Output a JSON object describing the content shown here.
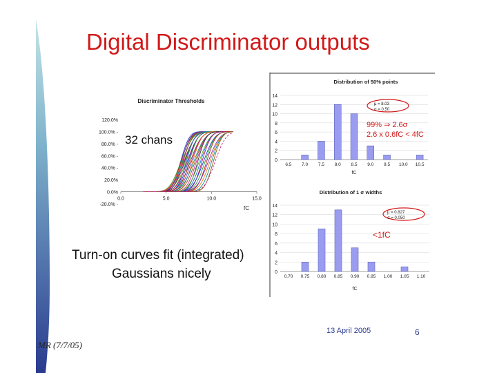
{
  "slide": {
    "title": "Digital Discriminator outputs",
    "caption_line1": "Turn-on curves fit (integrated)",
    "caption_line2": "Gaussians nicely",
    "date": "13 April 2005",
    "page": "6",
    "author_tag": "MR (7/7/05)",
    "colors": {
      "title": "#d11919",
      "sidebar_top": "#b8dde0",
      "sidebar_bottom": "#2a3b8f",
      "bars": "#9a9cf0",
      "annotation": "#d11919"
    }
  },
  "chart_data": [
    {
      "type": "line",
      "title": "Discriminator Thresholds",
      "annotation": "32 chans",
      "x_ticks": [
        "0.0",
        "5.0",
        "10.0",
        "15.0"
      ],
      "x_tick_values": [
        0,
        5,
        10,
        15
      ],
      "xlabel": "fC",
      "y_ticks": [
        "120.0%",
        "100.0% -",
        "80.0% -",
        "60.0% -",
        "40.0% -",
        "20.0%",
        "0.0%",
        "-20.0% -"
      ],
      "y_tick_values": [
        120,
        100,
        80,
        60,
        40,
        20,
        0,
        -20
      ],
      "xlim": [
        0,
        15
      ],
      "ylim": [
        -20,
        120
      ],
      "curve_model": "integrated gaussian",
      "n_channels": 32,
      "mu_range_fC": [
        6.6,
        10.4
      ],
      "sigma_range_fC": [
        0.75,
        1.0
      ],
      "plateau_percent": 100
    },
    {
      "type": "bar",
      "title": "Distribution of 50% points",
      "xlabel": "fC",
      "categories": [
        "6.5",
        "7.0",
        "7.5",
        "8.0",
        "8.5",
        "9.0",
        "9.5",
        "10.0",
        "10.5"
      ],
      "values": [
        0,
        1,
        4,
        12,
        10,
        3,
        1,
        0,
        1
      ],
      "y_ticks": [
        "14",
        "12",
        "10",
        "8",
        "6",
        "4",
        "2",
        "0"
      ],
      "ylim": [
        0,
        14
      ],
      "stats": [
        "μ = 8.03",
        "σ = 0.50"
      ],
      "annotations": [
        "99% ⇒ 2.6σ",
        "2.6 x 0.6fC < 4fC"
      ]
    },
    {
      "type": "bar",
      "title": "Distribution of 1 σ widths",
      "xlabel": "fC",
      "categories": [
        "0.70",
        "0.75",
        "0.80",
        "0.85",
        "0.90",
        "0.95",
        "1.00",
        "1.05",
        "1.10"
      ],
      "values": [
        0,
        2,
        9,
        13,
        5,
        2,
        0,
        1,
        0
      ],
      "y_ticks": [
        "14",
        "12",
        "10",
        "8",
        "6",
        "4",
        "2",
        "0"
      ],
      "ylim": [
        0,
        14
      ],
      "stats": [
        "μ = 0.827",
        "σ = 0.050"
      ],
      "annotations": [
        "<1fC"
      ]
    }
  ]
}
